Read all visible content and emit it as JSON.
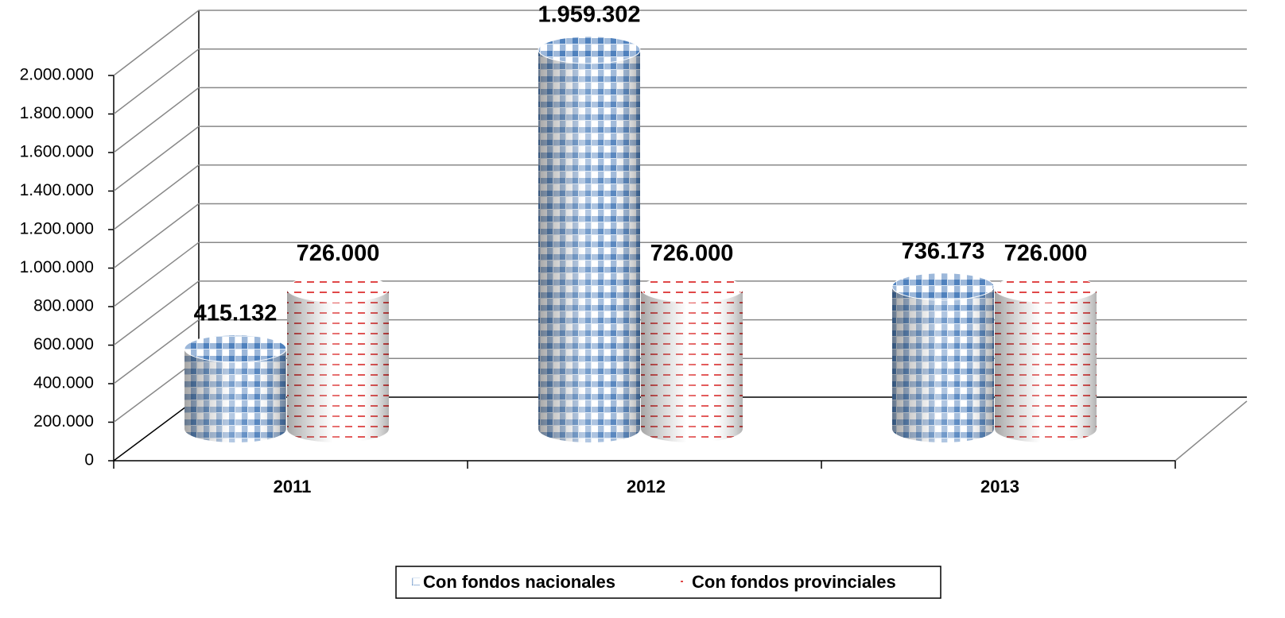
{
  "chart_data": {
    "type": "bar3d",
    "categories": [
      "2011",
      "2012",
      "2013"
    ],
    "series": [
      {
        "name": "Con fondos nacionales",
        "color": "#4f81bd",
        "values": [
          415132,
          1959302,
          736173
        ],
        "value_labels": [
          "415.132",
          "1.959.302",
          "736.173"
        ]
      },
      {
        "name": "Con fondos provinciales",
        "color": "#e04848",
        "values": [
          726000,
          726000,
          726000
        ],
        "value_labels": [
          "726.000",
          "726.000",
          "726.000"
        ]
      }
    ],
    "ylim": [
      0,
      2000000
    ],
    "yticks": [
      0,
      {
        "value": 200000,
        "label": "200.000"
      },
      {
        "value": 400000,
        "label": "400.000"
      },
      {
        "value": 600000,
        "label": "600.000"
      },
      {
        "value": 800000,
        "label": "800.000"
      },
      {
        "value": 1000000,
        "label": "1.000.000"
      },
      {
        "value": 1200000,
        "label": "1.200.000"
      },
      {
        "value": 1400000,
        "label": "1.400.000"
      },
      {
        "value": 1600000,
        "label": "1.600.000"
      },
      {
        "value": 1800000,
        "label": "1.800.000"
      },
      {
        "value": 2000000,
        "label": "2.000.000"
      }
    ],
    "grid": true,
    "legend": "bottom"
  }
}
